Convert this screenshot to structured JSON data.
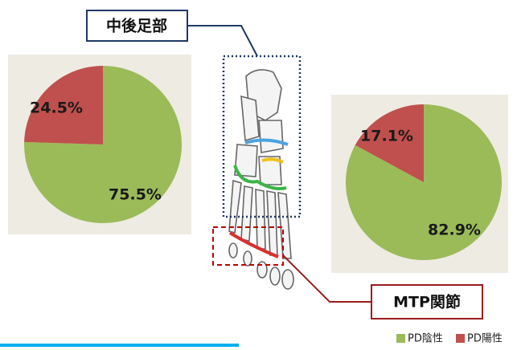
{
  "chart_data": {
    "type": "pie",
    "categories": [
      "PD陰性",
      "PD陽性"
    ],
    "colors": [
      "#9bbb59",
      "#c0504d"
    ],
    "series": [
      {
        "values": [
          75.5,
          24.5
        ],
        "value_labels": [
          "75.5%",
          "24.5%"
        ]
      },
      {
        "values": [
          82.9,
          17.1
        ],
        "value_labels": [
          "82.9%",
          "17.1%"
        ]
      }
    ],
    "annotations": [
      "中後足部",
      "MTP関節"
    ]
  }
}
